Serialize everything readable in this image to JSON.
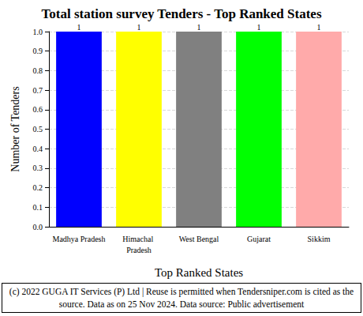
{
  "chart_data": {
    "type": "bar",
    "title": "Total station survey Tenders - Top Ranked States",
    "x_label": "Top Ranked States",
    "y_label": "Number of Tenders",
    "footer": "(c) 2022 GUGA IT Services (P) Ltd | Reuse is permitted when Tendersniper.com is cited as the source. Data as on 25 Nov 2024. Data source: Public advertisement",
    "categories": [
      "Madhya Pradesh",
      "Himachal Pradesh",
      "West Bengal",
      "Gujarat",
      "Sikkim"
    ],
    "values": [
      1,
      1,
      1,
      1,
      1
    ],
    "colors": [
      "#0000ff",
      "#ffff00",
      "#808080",
      "#00ff00",
      "#ffaaaa"
    ],
    "ylim": [
      0,
      1
    ],
    "yticks": [
      {
        "value": 0,
        "label": "0.0"
      },
      {
        "value": 0.1,
        "label": "0.1"
      },
      {
        "value": 0.2,
        "label": "0.2"
      },
      {
        "value": 0.3,
        "label": "0.3"
      },
      {
        "value": 0.4,
        "label": "0.4"
      },
      {
        "value": 0.5,
        "label": "0.5"
      },
      {
        "value": 0.6,
        "label": "0.6"
      },
      {
        "value": 0.7,
        "label": "0.7"
      },
      {
        "value": 0.8,
        "label": "0.8"
      },
      {
        "value": 0.9,
        "label": "0.9"
      },
      {
        "value": 1,
        "label": "1.0"
      }
    ],
    "grid": true,
    "data_labels": true
  }
}
